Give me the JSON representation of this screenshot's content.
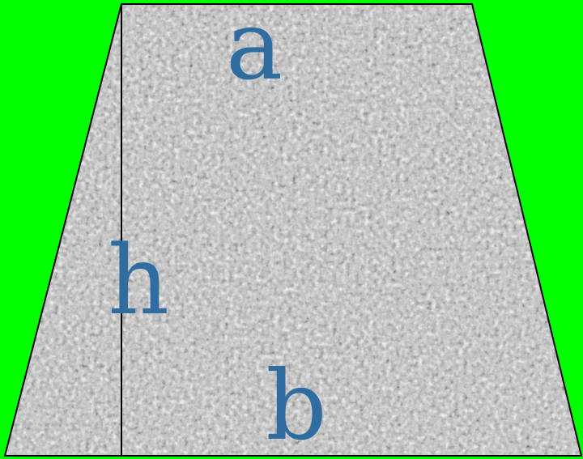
{
  "background_color": "#00ff00",
  "shape": {
    "type": "trapezoid",
    "texture": "gray-granite-noise",
    "outline_color": "#000000",
    "label_color": "#2f6da0"
  },
  "labels": {
    "top_base": "a",
    "height": "h",
    "bottom_base": "b"
  }
}
